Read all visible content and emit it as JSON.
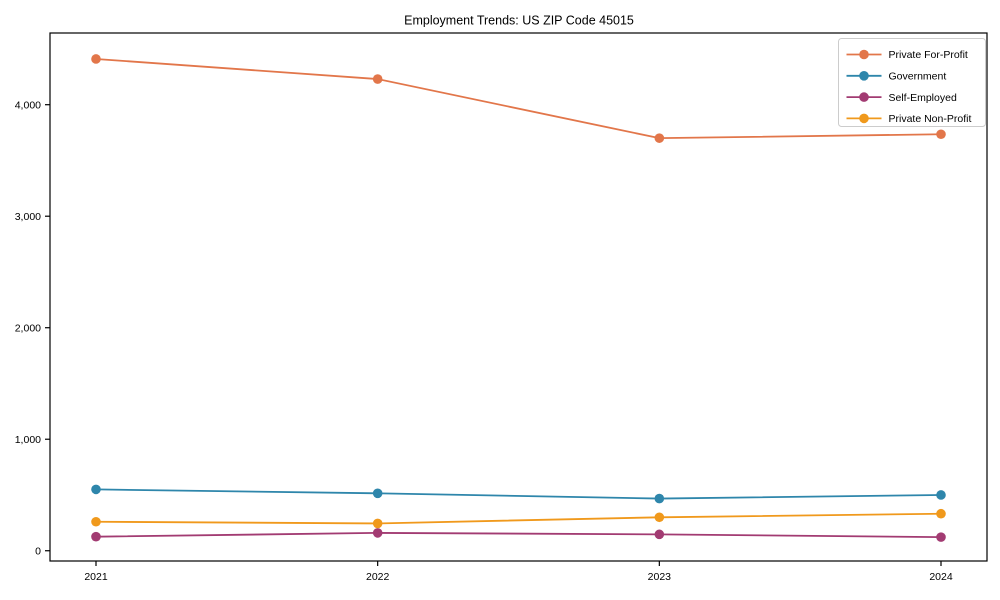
{
  "figure": {
    "background": "#ffffff",
    "axis_color": "#000000",
    "legend_border_color": "#cccccc"
  },
  "chart_data": {
    "type": "line",
    "title": "Employment Trends: US ZIP Code 45015",
    "xlabel": "",
    "ylabel": "",
    "x": [
      2021,
      2022,
      2023,
      2024
    ],
    "xtick_labels": [
      "2021",
      "2022",
      "2023",
      "2024"
    ],
    "yticks": [
      0,
      1000,
      2000,
      3000,
      4000
    ],
    "ytick_labels": [
      "0",
      "1,000",
      "2,000",
      "3,000",
      "4,000"
    ],
    "ylim": [
      -92,
      4643
    ],
    "grid": false,
    "legend_position": "upper right",
    "marker": "circle",
    "series": [
      {
        "name": "Private For-Profit",
        "color": "#E2764A",
        "values": [
          4410,
          4230,
          3700,
          3735
        ]
      },
      {
        "name": "Government",
        "color": "#2E86AB",
        "values": [
          550,
          515,
          468,
          500
        ]
      },
      {
        "name": "Self-Employed",
        "color": "#A23B72",
        "values": [
          126,
          160,
          147,
          122
        ]
      },
      {
        "name": "Private Non-Profit",
        "color": "#F0991C",
        "values": [
          260,
          245,
          300,
          332
        ]
      }
    ]
  }
}
